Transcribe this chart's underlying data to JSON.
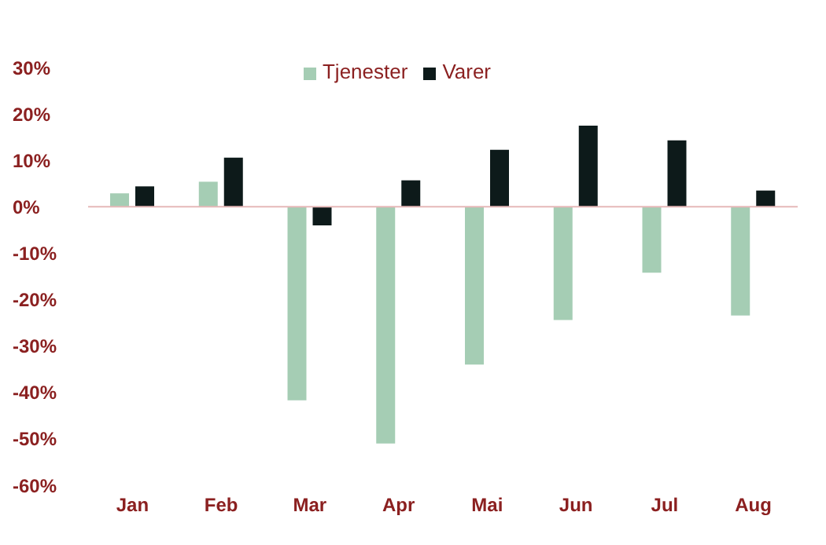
{
  "chart_data": {
    "type": "bar",
    "categories": [
      "Jan",
      "Feb",
      "Mar",
      "Apr",
      "Mai",
      "Jun",
      "Jul",
      "Aug"
    ],
    "series": [
      {
        "name": "Tjenester",
        "color": "#a5cdb4",
        "values": [
          2.9,
          5.4,
          -41.7,
          -51,
          -34,
          -24.4,
          -14.2,
          -23.4
        ]
      },
      {
        "name": "Varer",
        "color": "#0d1a1a",
        "values": [
          4.4,
          10.6,
          -4,
          5.7,
          12.3,
          17.5,
          14.3,
          3.5
        ]
      }
    ],
    "ylim": [
      -60,
      30
    ],
    "yticks": [
      {
        "value": -60,
        "label": "-60%"
      },
      {
        "value": -50,
        "label": "-50%"
      },
      {
        "value": -40,
        "label": "-40%"
      },
      {
        "value": -30,
        "label": "-30%"
      },
      {
        "value": -20,
        "label": "-20%"
      },
      {
        "value": -10,
        "label": "-10%"
      },
      {
        "value": 0,
        "label": "0%"
      },
      {
        "value": 10,
        "label": "10%"
      },
      {
        "value": 20,
        "label": "20%"
      },
      {
        "value": 30,
        "label": "30%"
      }
    ],
    "ref_lines": [
      {
        "axis": "y",
        "value": 0,
        "color": "#e6b8b8"
      }
    ],
    "grid": false,
    "legend": "top"
  }
}
